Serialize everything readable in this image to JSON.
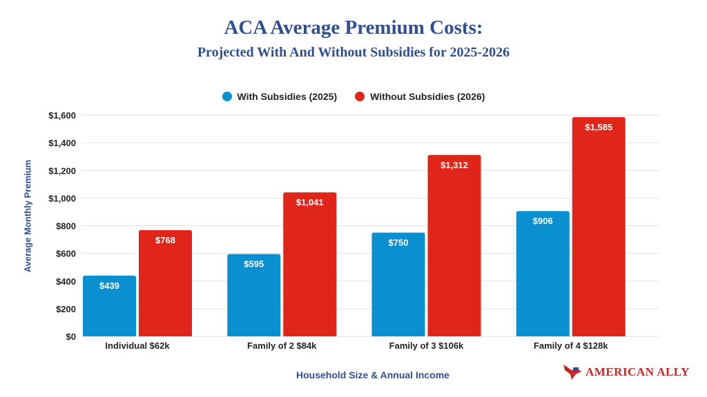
{
  "chart_data": {
    "type": "bar",
    "title": "ACA Average Premium Costs:",
    "subtitle": "Projected With And Without Subsidies for 2025-2026",
    "xlabel": "Household Size & Annual Income",
    "ylabel": "Average Monthly Premium",
    "ylim": [
      0,
      1600
    ],
    "yticks": [
      0,
      200,
      400,
      600,
      800,
      1000,
      1200,
      1400,
      1600
    ],
    "ytick_labels": [
      "$0",
      "$200",
      "$400",
      "$600",
      "$800",
      "$1,000",
      "$1,200",
      "$1,400",
      "$1,600"
    ],
    "grid": true,
    "legend_position": "top",
    "categories": [
      "Individual $62k",
      "Family of 2 $84k",
      "Family of 3 $106k",
      "Family of 4 $128k"
    ],
    "series": [
      {
        "name": "With Subsidies (2025)",
        "color": "#0a8fd0",
        "values": [
          439,
          595,
          750,
          906
        ],
        "labels": [
          "$439",
          "$595",
          "$750",
          "$906"
        ]
      },
      {
        "name": "Without Subsidies (2026)",
        "color": "#e0261b",
        "values": [
          768,
          1041,
          1312,
          1585
        ],
        "labels": [
          "$768",
          "$1,041",
          "$1,312",
          "$1,585"
        ]
      }
    ]
  },
  "logo": {
    "text": "American Ally"
  }
}
